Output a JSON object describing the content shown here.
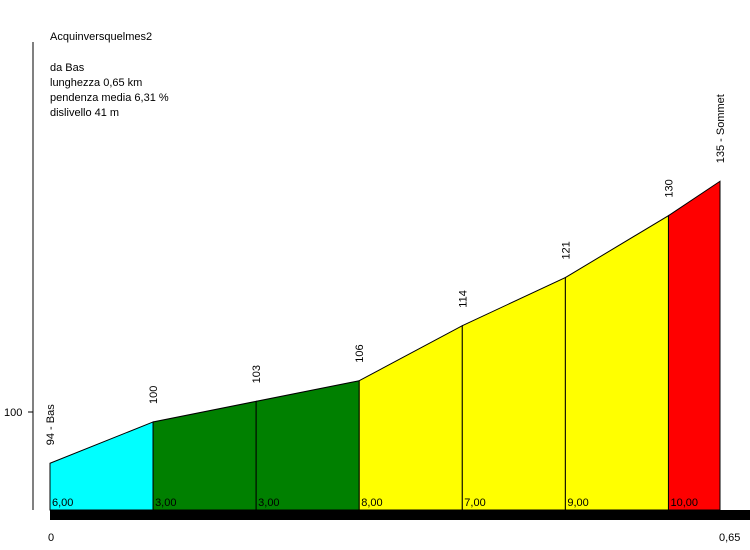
{
  "header": {
    "title": "Acquinversquelmes2",
    "start_label": "da Bas",
    "length_label": "lunghezza 0,65 km",
    "gradient_label": "pendenza media 6,31 %",
    "elevation_gain_label": "dislivello 41 m"
  },
  "chart_data": {
    "type": "area",
    "title": "Acquinversquelmes2",
    "xlabel": "",
    "ylabel": "",
    "x_tick_labels": [
      "0",
      "0,65"
    ],
    "y_tick_labels": [
      "100"
    ],
    "y_tick_values": [
      100
    ],
    "xlim": [
      0,
      0.65
    ],
    "ylim": [
      87.2,
      141
    ],
    "points": [
      {
        "x": 0.0,
        "elevation": 94,
        "label": "94 - Bas"
      },
      {
        "x": 0.1,
        "elevation": 100,
        "label": "100"
      },
      {
        "x": 0.2,
        "elevation": 103,
        "label": "103"
      },
      {
        "x": 0.3,
        "elevation": 106,
        "label": "106"
      },
      {
        "x": 0.4,
        "elevation": 114,
        "label": "114"
      },
      {
        "x": 0.5,
        "elevation": 121,
        "label": "121"
      },
      {
        "x": 0.6,
        "elevation": 130,
        "label": "130"
      },
      {
        "x": 0.65,
        "elevation": 135,
        "label": "135 - Sommet"
      }
    ],
    "segments": [
      {
        "gradient_label": "6,00",
        "color": "#00ffff"
      },
      {
        "gradient_label": "3,00",
        "color": "#008000"
      },
      {
        "gradient_label": "3,00",
        "color": "#008000"
      },
      {
        "gradient_label": "8,00",
        "color": "#ffff00"
      },
      {
        "gradient_label": "7,00",
        "color": "#ffff00"
      },
      {
        "gradient_label": "9,00",
        "color": "#ffff00"
      },
      {
        "gradient_label": "10,00",
        "color": "#ff0000"
      }
    ]
  }
}
